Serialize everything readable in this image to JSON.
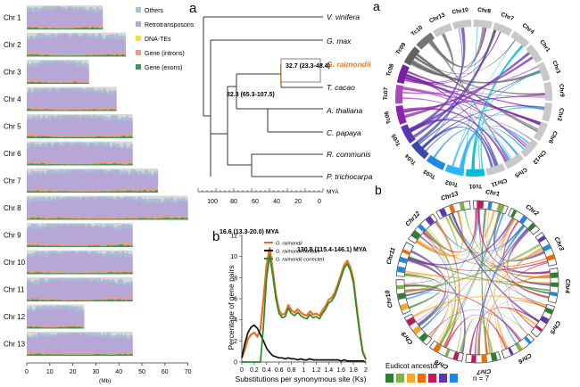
{
  "chromosomes": {
    "labels": [
      "Chr 1",
      "Chr 2",
      "Chr 3",
      "Chr 4",
      "Chr 5",
      "Chr 6",
      "Chr 7",
      "Chr 8",
      "Chr 9",
      "Chr 10",
      "Chr 11",
      "Chr 12",
      "Chr 13"
    ],
    "lengths_mb": [
      33,
      43,
      27,
      39,
      46,
      46,
      57,
      70,
      46,
      46,
      46,
      25,
      46
    ],
    "axis_ticks": [
      "0",
      "10",
      "20",
      "30",
      "40",
      "50",
      "60",
      "70"
    ],
    "axis_unit": "(Mb)",
    "legend": [
      {
        "label": "Others",
        "color": "#a9bfd6"
      },
      {
        "label": "Retrotransposons",
        "color": "#b6a7d6"
      },
      {
        "label": "DNA-TEs",
        "color": "#f2e04a"
      },
      {
        "label": "Gene (introns)",
        "color": "#f39a7c"
      },
      {
        "label": "Gene (exons)",
        "color": "#3a9a5a"
      }
    ],
    "colors": {
      "bg": "#d8d8d8",
      "retro": "#b6a7d6",
      "others": "#a9bfd6",
      "introns": "#f39a7c",
      "exons": "#3a9a5a"
    }
  },
  "tree": {
    "panel_label": "a",
    "species": [
      "V. vinifera",
      "G. max",
      "G. raimondii",
      "T. cacao",
      "A. thaliana",
      "C. papaya",
      "R. communis",
      "P. trichocarpa"
    ],
    "highlight_color": "#e87d1e",
    "node_labels": [
      "32.7 (23.3-48.4)",
      "82.3 (65.3-107.5)"
    ],
    "axis_unit": "MYA",
    "axis_ticks": [
      "100",
      "80",
      "60",
      "40",
      "20",
      "0"
    ]
  },
  "ks_chart": {
    "panel_label": "b",
    "annotation_left": "16.6 (13.3-20.0) MYA",
    "annotation_right": "130.8 (115.4-146.1) MYA",
    "ylabel": "Percentage of gene pairs",
    "xlabel": "Substitutions per synonymous site (Ks)",
    "legend": [
      "G. raimondii",
      "G. raimondii tandem",
      "G. raimondii corrected"
    ]
  },
  "chart_data": {
    "type": "line",
    "title": "",
    "xlabel": "Substitutions per synonymous site (Ks)",
    "ylabel": "Percentage of gene pairs",
    "xlim": [
      0,
      2
    ],
    "ylim": [
      0,
      12
    ],
    "x_ticks": [
      "0",
      "0.2",
      "0.4",
      "0.6",
      "0.8",
      "1",
      "1.2",
      "1.4",
      "1.6",
      "1.8",
      "2"
    ],
    "y_ticks": [
      "0",
      "2",
      "4",
      "6",
      "8",
      "10",
      "12"
    ],
    "x": [
      0,
      0.05,
      0.1,
      0.15,
      0.2,
      0.25,
      0.3,
      0.35,
      0.4,
      0.45,
      0.5,
      0.55,
      0.6,
      0.65,
      0.7,
      0.75,
      0.8,
      0.85,
      0.9,
      0.95,
      1.0,
      1.05,
      1.1,
      1.15,
      1.2,
      1.25,
      1.3,
      1.35,
      1.4,
      1.45,
      1.5,
      1.55,
      1.6,
      1.65,
      1.7,
      1.75,
      1.8,
      1.85,
      1.9,
      1.95,
      2.0
    ],
    "series": [
      {
        "name": "G. raimondii",
        "color": "#e8731e",
        "values": [
          0.4,
          1.2,
          2.2,
          2.6,
          2.8,
          2.4,
          3.1,
          6.0,
          9.2,
          10.8,
          8.6,
          6.4,
          4.9,
          4.5,
          4.6,
          5.4,
          4.9,
          4.7,
          5.0,
          4.7,
          4.5,
          4.4,
          4.8,
          4.5,
          4.6,
          4.4,
          4.9,
          5.3,
          5.9,
          6.1,
          6.6,
          7.4,
          8.3,
          9.2,
          9.6,
          9.0,
          7.8,
          5.3,
          3.0,
          1.0,
          0.3
        ]
      },
      {
        "name": "G. raimondii tandem",
        "color": "#111111",
        "values": [
          0.4,
          1.8,
          2.8,
          3.3,
          3.5,
          3.2,
          2.6,
          2.0,
          1.3,
          0.9,
          0.6,
          0.5,
          0.4,
          0.4,
          0.3,
          0.4,
          0.3,
          0.3,
          0.2,
          0.3,
          0.2,
          0.2,
          0.3,
          0.2,
          0.2,
          0.2,
          0.2,
          0.2,
          0.2,
          0.2,
          0.2,
          0.2,
          0.1,
          0.2,
          0.1,
          0.1,
          0.1,
          0.1,
          0.1,
          0.1,
          0.0
        ]
      },
      {
        "name": "G. raimondii corrected",
        "color": "#2a8a2a",
        "values": [
          0.0,
          0.0,
          0.0,
          0.0,
          0.0,
          0.0,
          0.0,
          3.5,
          8.0,
          10.1,
          8.1,
          6.0,
          4.6,
          4.2,
          4.3,
          5.1,
          4.6,
          4.4,
          4.7,
          4.4,
          4.2,
          4.1,
          4.5,
          4.2,
          4.3,
          4.1,
          4.6,
          5.0,
          5.6,
          5.8,
          6.3,
          7.1,
          8.0,
          8.9,
          9.3,
          8.7,
          7.5,
          5.0,
          2.8,
          0.9,
          0.2
        ]
      }
    ]
  },
  "circos_a": {
    "panel_label": "a",
    "segments": [
      "Chr13",
      "Chr10",
      "Chr8",
      "Chr7",
      "Chr4",
      "Chr1",
      "Chr3",
      "Chr9",
      "Chr2",
      "Chr6",
      "Chr12",
      "Chr5",
      "Chr11",
      "Tc01",
      "Tc02",
      "Tc03",
      "Tc04",
      "Tc05",
      "Tc06",
      "Tc07",
      "Tc08",
      "Tc09",
      "Tc10"
    ]
  },
  "circos_b": {
    "panel_label": "b",
    "segments": [
      "Chr1",
      "Chr2",
      "Chr3",
      "Chr4",
      "Chr5",
      "Chr6",
      "Chr7",
      "Chr8",
      "Chr9",
      "Chr10",
      "Chr11",
      "Chr12",
      "Chr13"
    ],
    "legend_title": "Eudicot ancestor",
    "legend_n": "n = 7",
    "ancestor_colors": [
      "#2e7d32",
      "#7cb342",
      "#f9a825",
      "#ef6c00",
      "#c2185b",
      "#5e35b1",
      "#1e88e5"
    ]
  }
}
